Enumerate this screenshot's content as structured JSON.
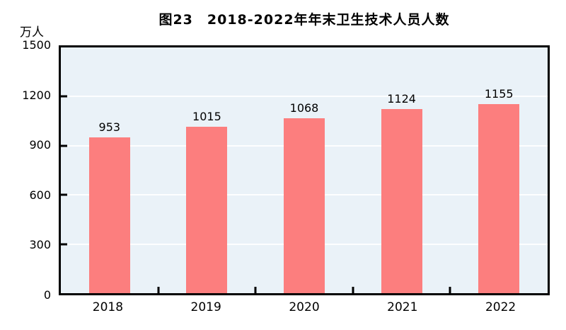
{
  "title": "图23　2018-2022年年末卫生技术人员人数",
  "unit_label": "万人",
  "colors": {
    "bar": "#fc7e7e",
    "plot_background": "#eaf2f8",
    "axis": "#000000",
    "gridline": "#ffffff",
    "text": "#000000"
  },
  "chart_data": {
    "type": "bar",
    "title": "图23　2018-2022年年末卫生技术人员人数",
    "unit": "万人",
    "xlabel": "",
    "ylabel": "万人",
    "categories": [
      "2018",
      "2019",
      "2020",
      "2021",
      "2022"
    ],
    "values": [
      953,
      1015,
      1068,
      1124,
      1155
    ],
    "value_labels": [
      "953",
      "1015",
      "1068",
      "1124",
      "1155"
    ],
    "ylim": [
      0,
      1500
    ],
    "yticks": [
      0,
      300,
      600,
      900,
      1200,
      1500
    ],
    "grid": true,
    "legend": "none",
    "bar_color": "#fc7e7e"
  }
}
